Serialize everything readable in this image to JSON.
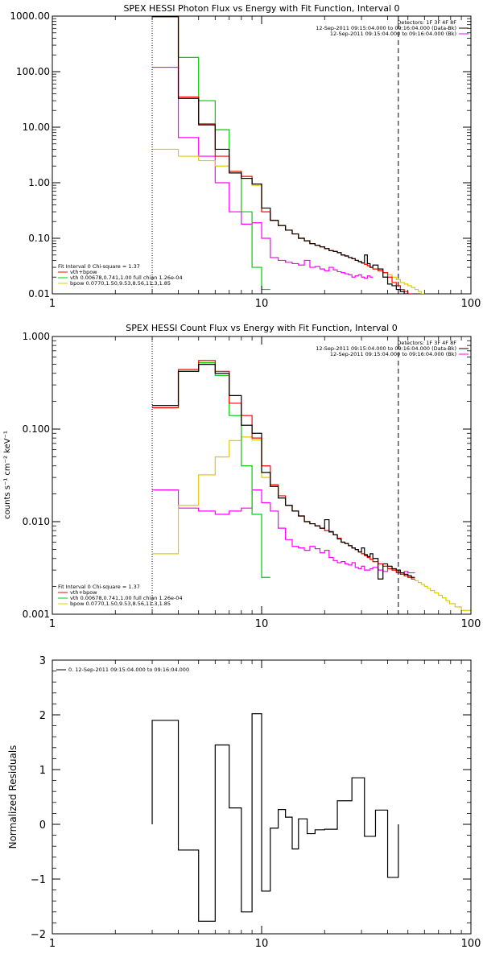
{
  "colors": {
    "data": "#000000",
    "model_total": "#ff0000",
    "vth": "#00cc00",
    "bpow": "#ddcc00",
    "background": "#ff00ff",
    "threshold_line": "#000000"
  },
  "chart_data": [
    {
      "type": "line",
      "title": "SPEX HESSI Photon Flux vs Energy with Fit Function, Interval 0",
      "xscale": "log",
      "yscale": "log",
      "xlim": [
        1,
        100
      ],
      "ylim": [
        0.01,
        1000
      ],
      "xticks": [
        "1",
        "10",
        "100"
      ],
      "yticks": [
        "0.01",
        "0.10",
        "1.00",
        "10.00",
        "100.00",
        "1000.00"
      ],
      "vlines": [
        {
          "x": 3,
          "style": "dotted"
        },
        {
          "x": 45,
          "style": "dashed"
        }
      ],
      "legend_tr": [
        "Detectors: 1F 3F 4F 8F",
        "12-Sep-2011 09:15:04.000 to 09:16:04.000 (Data-Bk)",
        "12-Sep-2011 09:15:04.000 to 09:16:04.000 (Bk)"
      ],
      "legend_bl": [
        "Fit Interval 0   Chi-square = 1.37",
        "vth+bpow",
        "vth 0.00678,0.741,1.00  full chian 1.26e-04",
        "bpow 0.0770,1.50,9.53,8.56,11.3,1.85"
      ],
      "edges": [
        3,
        4,
        5,
        6,
        7,
        8,
        9,
        10,
        11,
        12,
        13,
        14,
        15,
        16,
        17,
        18,
        19,
        20,
        21,
        22,
        23,
        24,
        25,
        26,
        27,
        28,
        29,
        30,
        31,
        32,
        33,
        34,
        36,
        38,
        40,
        42,
        44,
        46,
        48,
        50,
        52,
        54,
        56,
        58,
        60,
        62,
        64,
        67,
        70,
        73,
        76,
        79
      ],
      "series": [
        {
          "key": "data",
          "end_index": 40,
          "values": [
            980,
            33,
            11,
            4,
            1.5,
            1.2,
            0.95,
            0.35,
            0.21,
            0.17,
            0.14,
            0.12,
            0.1,
            0.09,
            0.08,
            0.075,
            0.07,
            0.065,
            0.06,
            0.058,
            0.055,
            0.05,
            0.048,
            0.045,
            0.043,
            0.04,
            0.038,
            0.036,
            0.05,
            0.035,
            0.03,
            0.033,
            0.028,
            0.02,
            0.015,
            0.014,
            0.012,
            0.011,
            0.01,
            0.009,
            0.008
          ]
        },
        {
          "key": "model_total",
          "end_index": 40,
          "values": [
            980,
            35,
            11.5,
            3,
            1.6,
            1.3,
            0.95,
            0.3,
            0.21,
            0.17,
            0.14,
            0.12,
            0.1,
            0.09,
            0.08,
            0.075,
            0.07,
            0.065,
            0.06,
            0.058,
            0.055,
            0.05,
            0.048,
            0.045,
            0.043,
            0.04,
            0.038,
            0.036,
            0.034,
            0.032,
            0.03,
            0.028,
            0.026,
            0.024,
            0.02,
            0.016,
            0.014,
            0.012,
            0.011,
            0.01,
            0.009
          ]
        },
        {
          "key": "vth",
          "end_index": 7,
          "values": [
            980,
            180,
            30,
            9,
            1.6,
            0.3,
            0.03,
            0.012
          ]
        },
        {
          "key": "bpow",
          "end_index": 51,
          "values": [
            4,
            3,
            2.5,
            2,
            1.6,
            1.2,
            0.9,
            0.3,
            0.21,
            0.17,
            0.14,
            0.12,
            0.1,
            0.09,
            0.08,
            0.075,
            0.07,
            0.065,
            0.06,
            0.058,
            0.055,
            0.05,
            0.048,
            0.045,
            0.043,
            0.04,
            0.038,
            0.036,
            0.034,
            0.032,
            0.03,
            0.028,
            0.026,
            0.024,
            0.022,
            0.02,
            0.018,
            0.016,
            0.015,
            0.014,
            0.013,
            0.012,
            0.011,
            0.01,
            0.0095,
            0.009,
            0.0085,
            0.008,
            0.0075,
            0.007,
            0.0065
          ]
        },
        {
          "key": "background",
          "end_index": 30,
          "values": [
            120,
            6.5,
            3,
            1,
            0.3,
            0.18,
            0.19,
            0.1,
            0.045,
            0.04,
            0.037,
            0.035,
            0.033,
            0.04,
            0.03,
            0.031,
            0.028,
            0.026,
            0.03,
            0.027,
            0.025,
            0.024,
            0.023,
            0.022,
            0.02,
            0.021,
            0.022,
            0.02,
            0.019,
            0.021,
            0.02
          ]
        }
      ]
    },
    {
      "type": "line",
      "title": "SPEX HESSI Count Flux vs Energy with Fit Function, Interval 0",
      "ylabel": "counts s⁻¹ cm⁻² keV⁻¹",
      "xscale": "log",
      "yscale": "log",
      "xlim": [
        1,
        100
      ],
      "ylim": [
        0.001,
        1
      ],
      "xticks": [
        "1",
        "10",
        "100"
      ],
      "yticks": [
        "0.001",
        "0.010",
        "0.100",
        "1.000"
      ],
      "vlines": [
        {
          "x": 3,
          "style": "dotted"
        },
        {
          "x": 45,
          "style": "dashed"
        }
      ],
      "legend_tr": [
        "Detectors: 1F 3F 4F 8F",
        "12-Sep-2011 09:15:04.000 to 09:16:04.000 (Data-Bk)",
        "12-Sep-2011 09:15:04.000 to 09:16:04.000 (Bk)"
      ],
      "legend_bl": [
        "Fit Interval 0   Chi-square = 1.37",
        "vth+bpow",
        "vth 0.00678,0.741,1.00  full chian 1.26e-04",
        "bpow 0.0770,1.50,9.53,8.56,11.3,1.85"
      ],
      "edges": [
        3,
        4,
        5,
        6,
        7,
        8,
        9,
        10,
        11,
        12,
        13,
        14,
        15,
        16,
        17,
        18,
        19,
        20,
        21,
        22,
        23,
        24,
        25,
        26,
        27,
        28,
        29,
        30,
        31,
        32,
        33,
        34,
        36,
        38,
        40,
        42,
        44,
        46,
        48,
        50,
        52,
        54,
        56,
        58,
        60,
        62,
        64,
        67,
        70,
        73,
        76,
        79,
        84,
        90,
        96,
        100
      ],
      "series": [
        {
          "key": "data",
          "end_index": 40,
          "values": [
            0.18,
            0.42,
            0.5,
            0.4,
            0.23,
            0.11,
            0.09,
            0.034,
            0.024,
            0.018,
            0.015,
            0.013,
            0.0115,
            0.01,
            0.0095,
            0.009,
            0.0085,
            0.0105,
            0.0078,
            0.0072,
            0.0065,
            0.006,
            0.0058,
            0.0055,
            0.0052,
            0.005,
            0.0047,
            0.0052,
            0.0044,
            0.0042,
            0.0045,
            0.004,
            0.0024,
            0.0035,
            0.0033,
            0.0031,
            0.003,
            0.0028,
            0.0027,
            0.0026,
            0.0025
          ]
        },
        {
          "key": "model_total",
          "end_index": 40,
          "values": [
            0.17,
            0.44,
            0.55,
            0.42,
            0.19,
            0.14,
            0.08,
            0.04,
            0.025,
            0.019,
            0.015,
            0.013,
            0.0115,
            0.01,
            0.0095,
            0.009,
            0.0085,
            0.008,
            0.0077,
            0.0072,
            0.0066,
            0.006,
            0.0058,
            0.0055,
            0.0052,
            0.005,
            0.0047,
            0.0045,
            0.0043,
            0.0041,
            0.0039,
            0.0037,
            0.0035,
            0.0033,
            0.0031,
            0.003,
            0.0028,
            0.0027,
            0.0026,
            0.0025,
            0.0024
          ]
        },
        {
          "key": "vth",
          "end_index": 7,
          "values": [
            0.17,
            0.42,
            0.52,
            0.38,
            0.14,
            0.04,
            0.012,
            0.0025
          ]
        },
        {
          "key": "bpow",
          "end_index": 55,
          "values": [
            0.0045,
            0.015,
            0.032,
            0.05,
            0.075,
            0.082,
            0.076,
            0.03,
            0.025,
            0.018,
            0.015,
            0.013,
            0.0115,
            0.01,
            0.0095,
            0.009,
            0.0085,
            0.008,
            0.0077,
            0.0072,
            0.0066,
            0.006,
            0.0058,
            0.0055,
            0.0052,
            0.005,
            0.0047,
            0.0045,
            0.0043,
            0.0041,
            0.0039,
            0.0037,
            0.0035,
            0.0033,
            0.0031,
            0.003,
            0.0028,
            0.0027,
            0.0026,
            0.0025,
            0.0024,
            0.0023,
            0.0022,
            0.0021,
            0.002,
            0.0019,
            0.0018,
            0.0017,
            0.0016,
            0.0015,
            0.0014,
            0.0013,
            0.0012,
            0.0011,
            0.0011,
            0.001
          ]
        },
        {
          "key": "background",
          "end_index": 40,
          "values": [
            0.022,
            0.014,
            0.013,
            0.012,
            0.013,
            0.014,
            0.022,
            0.016,
            0.013,
            0.0085,
            0.0064,
            0.0054,
            0.0052,
            0.0049,
            0.0054,
            0.0051,
            0.0046,
            0.0049,
            0.0041,
            0.0038,
            0.0036,
            0.0037,
            0.0035,
            0.0034,
            0.0036,
            0.0032,
            0.0031,
            0.0033,
            0.003,
            0.003,
            0.0031,
            0.0032,
            0.003,
            0.0029,
            0.0031,
            0.003,
            0.0029,
            0.0028,
            0.0029,
            0.0028,
            0.0028
          ]
        }
      ]
    },
    {
      "type": "line",
      "ylabel": "Normalized Residuals",
      "xscale": "log",
      "yscale": "linear",
      "xlim": [
        1,
        100
      ],
      "ylim": [
        -2,
        3
      ],
      "xticks": [
        "1",
        "10",
        "100"
      ],
      "yticks": [
        "−2",
        "−1",
        "0",
        "1",
        "2",
        "3"
      ],
      "legend_tl": [
        "0. 12-Sep-2011 09:15:04.000 to 09:16:04.000"
      ],
      "edges": [
        3,
        4,
        5,
        6,
        7,
        8,
        9,
        10,
        11,
        12,
        13,
        14,
        15,
        16,
        17,
        18,
        19,
        20,
        21,
        22,
        23,
        24,
        25,
        26,
        27,
        28,
        29,
        30,
        31,
        32,
        33,
        34,
        36,
        38,
        40,
        42,
        44,
        46,
        48,
        50,
        52,
        54,
        56,
        58,
        60,
        62,
        64,
        67,
        70,
        73,
        76,
        79
      ],
      "bins": [
        {
          "x0": 3,
          "x1": 4,
          "v": 1.9
        },
        {
          "x0": 4,
          "x1": 5,
          "v": -0.47
        },
        {
          "x0": 5,
          "x1": 6,
          "v": -1.77
        },
        {
          "x0": 6,
          "x1": 7,
          "v": 1.45
        },
        {
          "x0": 7,
          "x1": 8,
          "v": 0.3
        },
        {
          "x0": 8,
          "x1": 9,
          "v": -1.6
        },
        {
          "x0": 9,
          "x1": 10,
          "v": 2.02
        },
        {
          "x0": 10,
          "x1": 11,
          "v": -1.22
        },
        {
          "x0": 11,
          "x1": 12,
          "v": -0.07
        },
        {
          "x0": 12,
          "x1": 13,
          "v": 0.27
        },
        {
          "x0": 13,
          "x1": 14,
          "v": 0.13
        },
        {
          "x0": 14,
          "x1": 15,
          "v": -0.45
        },
        {
          "x0": 15,
          "x1": 16.5,
          "v": 0.1
        },
        {
          "x0": 16.5,
          "x1": 18,
          "v": -0.17
        },
        {
          "x0": 18,
          "x1": 20,
          "v": -0.1
        },
        {
          "x0": 20,
          "x1": 23,
          "v": -0.09
        },
        {
          "x0": 23,
          "x1": 27,
          "v": 0.43
        },
        {
          "x0": 27,
          "x1": 31,
          "v": 0.85
        },
        {
          "x0": 31,
          "x1": 35,
          "v": -0.22
        },
        {
          "x0": 35,
          "x1": 40,
          "v": 0.26
        },
        {
          "x0": 40,
          "x1": 45,
          "v": -0.97
        }
      ]
    }
  ]
}
